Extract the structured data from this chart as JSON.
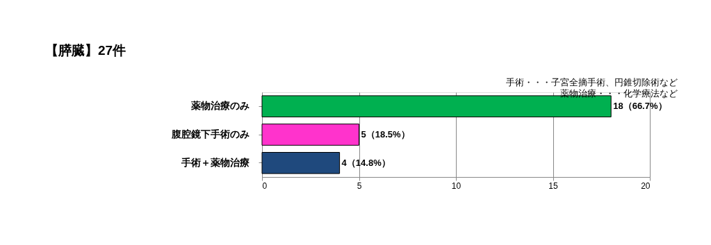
{
  "chart_data": {
    "type": "bar",
    "orientation": "horizontal",
    "title": "【膵臓】27件",
    "categories": [
      "薬物治療のみ",
      "腹腔鏡下手術のみ",
      "手術＋薬物治療"
    ],
    "values": [
      18,
      5,
      4
    ],
    "colors": [
      "#00b050",
      "#ff33cc",
      "#1f497d"
    ],
    "value_labels": [
      "18（66.7%）",
      "5（18.5%）",
      "4（14.8%）"
    ],
    "xlim": [
      0,
      20
    ],
    "xticks": [
      0,
      5,
      10,
      15,
      20
    ],
    "grid": "x",
    "annotations": [
      "手術・・・子宮全摘手術、円錐切除術など",
      "薬物治療・・・化学療法など"
    ]
  }
}
